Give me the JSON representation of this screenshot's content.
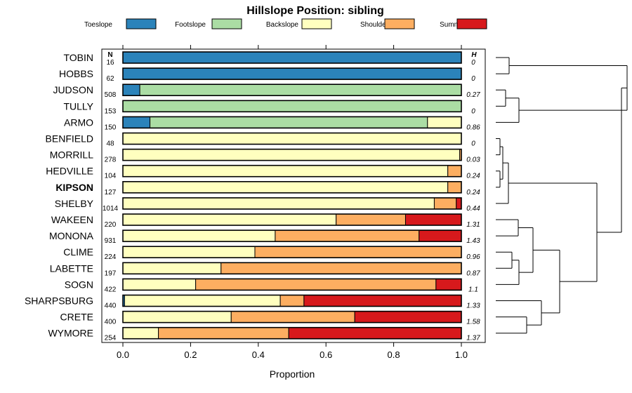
{
  "chart_data": {
    "type": "stacked-bar-horizontal",
    "title": "Hillslope Position: sibling",
    "xlabel": "Proportion",
    "ylabel": "",
    "xlim": [
      0,
      1
    ],
    "x_ticks": [
      "0.0",
      "0.2",
      "0.4",
      "0.6",
      "0.8",
      "1.0"
    ],
    "n_header": "N",
    "h_header": "H",
    "legend_position": "top",
    "highlighted_category": "KIPSON",
    "series": [
      {
        "name": "Toeslope",
        "color": "#2b83ba"
      },
      {
        "name": "Footslope",
        "color": "#abdda4"
      },
      {
        "name": "Backslope",
        "color": "#ffffbf"
      },
      {
        "name": "Shoulder",
        "color": "#fdae61"
      },
      {
        "name": "Summit",
        "color": "#d7191c"
      }
    ],
    "categories": [
      {
        "name": "TOBIN",
        "n": "16",
        "h": "0",
        "values": [
          1.0,
          0,
          0,
          0,
          0
        ]
      },
      {
        "name": "HOBBS",
        "n": "62",
        "h": "0",
        "values": [
          1.0,
          0,
          0,
          0,
          0
        ]
      },
      {
        "name": "JUDSON",
        "n": "508",
        "h": "0.27",
        "values": [
          0.05,
          0.95,
          0,
          0,
          0
        ]
      },
      {
        "name": "TULLY",
        "n": "153",
        "h": "0",
        "values": [
          0,
          1.0,
          0,
          0,
          0
        ]
      },
      {
        "name": "ARMO",
        "n": "150",
        "h": "0.86",
        "values": [
          0.08,
          0.82,
          0.1,
          0,
          0
        ]
      },
      {
        "name": "BENFIELD",
        "n": "48",
        "h": "0",
        "values": [
          0,
          0,
          1.0,
          0,
          0
        ]
      },
      {
        "name": "MORRILL",
        "n": "278",
        "h": "0.03",
        "values": [
          0,
          0,
          0.995,
          0.005,
          0
        ]
      },
      {
        "name": "HEDVILLE",
        "n": "104",
        "h": "0.24",
        "values": [
          0,
          0,
          0.96,
          0.04,
          0
        ]
      },
      {
        "name": "KIPSON",
        "n": "127",
        "h": "0.24",
        "values": [
          0,
          0,
          0.96,
          0.04,
          0
        ]
      },
      {
        "name": "SHELBY",
        "n": "1014",
        "h": "0.44",
        "values": [
          0,
          0,
          0.92,
          0.065,
          0.015
        ]
      },
      {
        "name": "WAKEEN",
        "n": "220",
        "h": "1.31",
        "values": [
          0,
          0,
          0.63,
          0.205,
          0.165
        ]
      },
      {
        "name": "MONONA",
        "n": "931",
        "h": "1.43",
        "values": [
          0,
          0,
          0.45,
          0.425,
          0.125
        ]
      },
      {
        "name": "CLIME",
        "n": "224",
        "h": "0.96",
        "values": [
          0,
          0,
          0.39,
          0.61,
          0
        ]
      },
      {
        "name": "LABETTE",
        "n": "197",
        "h": "0.87",
        "values": [
          0,
          0,
          0.29,
          0.71,
          0
        ]
      },
      {
        "name": "SOGN",
        "n": "422",
        "h": "1.1",
        "values": [
          0,
          0,
          0.215,
          0.71,
          0.075
        ]
      },
      {
        "name": "SHARPSBURG",
        "n": "440",
        "h": "1.33",
        "values": [
          0.005,
          0,
          0.46,
          0.07,
          0.465
        ]
      },
      {
        "name": "CRETE",
        "n": "400",
        "h": "1.58",
        "values": [
          0,
          0,
          0.32,
          0.365,
          0.315
        ]
      },
      {
        "name": "WYMORE",
        "n": "254",
        "h": "1.37",
        "values": [
          0,
          0,
          0.105,
          0.385,
          0.51
        ]
      }
    ]
  }
}
